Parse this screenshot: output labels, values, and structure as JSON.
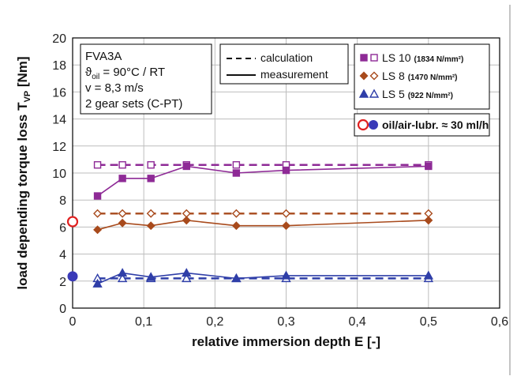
{
  "chart_data": {
    "type": "line",
    "xlabel": "relative immersion depth E [-]",
    "ylabel_main": "load depending torque loss T",
    "ylabel_sub": "VP",
    "ylabel_unit": " [Nm]",
    "xlim": [
      0,
      0.6
    ],
    "ylim": [
      0,
      20
    ],
    "xticks": [
      0,
      0.1,
      0.2,
      0.3,
      0.4,
      0.5,
      0.6
    ],
    "xtick_labels": [
      "0",
      "0,1",
      "0,2",
      "0,3",
      "0,4",
      "0,5",
      "0,6"
    ],
    "yticks": [
      0,
      2,
      4,
      6,
      8,
      10,
      12,
      14,
      16,
      18,
      20
    ],
    "ytick_labels": [
      "0",
      "2",
      "4",
      "6",
      "8",
      "10",
      "12",
      "14",
      "16",
      "18",
      "20"
    ],
    "grid": true,
    "info_box": {
      "line1": "FVA3A",
      "line2_symbol": "ϑ",
      "line2_sub": "oil",
      "line2_rest": " = 90°C / RT",
      "line3": "v = 8,3 m/s",
      "line4": "2 gear sets (C-PT)"
    },
    "style_legend": {
      "calculation": "calculation",
      "measurement": "measurement"
    },
    "series": [
      {
        "name": "LS 10",
        "detail": "(1834 N/mm²)",
        "color": "#8e2a96",
        "marker": "square",
        "x": [
          0.035,
          0.07,
          0.11,
          0.16,
          0.23,
          0.3,
          0.5
        ],
        "measurement": [
          8.3,
          9.6,
          9.6,
          10.5,
          10.0,
          10.2,
          10.5
        ],
        "calculation": [
          10.6,
          10.6,
          10.6,
          10.6,
          10.6,
          10.6,
          10.6
        ]
      },
      {
        "name": "LS 8",
        "detail": "(1470 N/mm²)",
        "color": "#a84a1c",
        "marker": "diamond",
        "x": [
          0.035,
          0.07,
          0.11,
          0.16,
          0.23,
          0.3,
          0.5
        ],
        "measurement": [
          5.8,
          6.3,
          6.1,
          6.5,
          6.1,
          6.1,
          6.5
        ],
        "calculation": [
          7.0,
          7.0,
          7.0,
          7.0,
          7.0,
          7.0,
          7.0
        ]
      },
      {
        "name": "LS 5",
        "detail": "(922 N/mm²)",
        "color": "#2f3ea8",
        "marker": "triangle",
        "x": [
          0.035,
          0.07,
          0.11,
          0.16,
          0.23,
          0.3,
          0.5
        ],
        "measurement": [
          1.8,
          2.6,
          2.3,
          2.6,
          2.2,
          2.4,
          2.4
        ],
        "calculation": [
          2.2,
          2.2,
          2.2,
          2.2,
          2.2,
          2.2,
          2.2
        ]
      }
    ],
    "oil_air": {
      "label": "oil/air-lubr. ≈ 30 ml/h",
      "open_color": "#e02020",
      "filled_color": "#3a3ab8",
      "points": [
        {
          "x": 0,
          "y": 6.4,
          "filled": false,
          "color": "#e02020"
        },
        {
          "x": 0,
          "y": 2.35,
          "filled": true,
          "color": "#3a3ab8"
        }
      ]
    }
  }
}
